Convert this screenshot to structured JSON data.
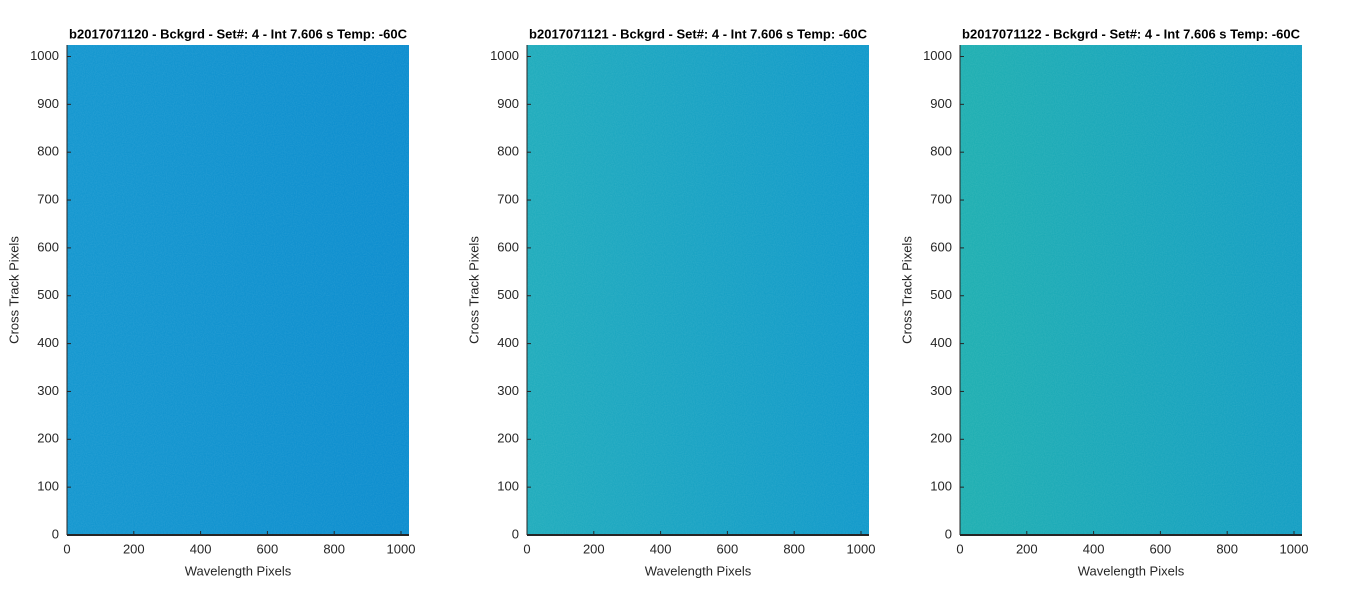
{
  "chart_data": [
    {
      "type": "image",
      "title": "b2017071120 - Bckgrd - Set#: 4 - Int 7.606 s Temp: -60C",
      "x_label": "Wavelength Pixels",
      "y_label": "Cross Track Pixels",
      "xlim": [
        0,
        1024
      ],
      "ylim": [
        0,
        1024
      ],
      "xticks": [
        0,
        200,
        400,
        600,
        800,
        1000
      ],
      "yticks": [
        0,
        100,
        200,
        300,
        400,
        500,
        600,
        700,
        800,
        900,
        1000
      ],
      "colors": [
        "#1698d0",
        "#0e8ecf"
      ]
    },
    {
      "type": "image",
      "title": "b2017071121 - Bckgrd - Set#: 4 - Int 7.606 s Temp: -60C",
      "x_label": "Wavelength Pixels",
      "y_label": "Cross Track Pixels",
      "xlim": [
        0,
        1024
      ],
      "ylim": [
        0,
        1024
      ],
      "xticks": [
        0,
        200,
        400,
        600,
        800,
        1000
      ],
      "yticks": [
        0,
        100,
        200,
        300,
        400,
        500,
        600,
        700,
        800,
        900,
        1000
      ],
      "colors": [
        "#22adbd",
        "#139acb"
      ]
    },
    {
      "type": "image",
      "title": "b2017071122 - Bckgrd - Set#: 4 - Int 7.606 s Temp: -60C",
      "x_label": "Wavelength Pixels",
      "y_label": "Cross Track Pixels",
      "xlim": [
        0,
        1024
      ],
      "ylim": [
        0,
        1024
      ],
      "xticks": [
        0,
        200,
        400,
        600,
        800,
        1000
      ],
      "yticks": [
        0,
        100,
        200,
        300,
        400,
        500,
        600,
        700,
        800,
        900,
        1000
      ],
      "colors": [
        "#21b0b2",
        "#169fc4"
      ]
    }
  ]
}
